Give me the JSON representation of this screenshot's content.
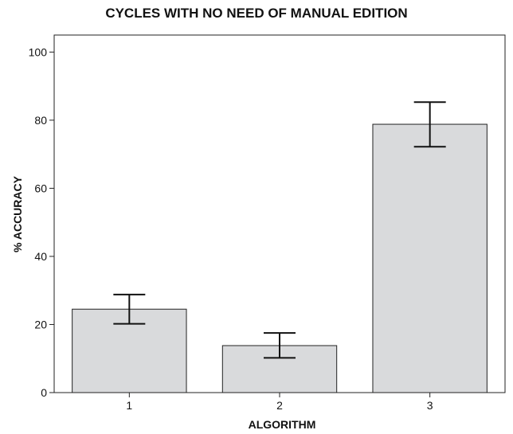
{
  "chart_data": {
    "type": "bar",
    "title": "CYCLES WITH NO NEED OF MANUAL EDITION",
    "xlabel": "ALGORITHM",
    "ylabel": "% ACCURACY",
    "categories": [
      "1",
      "2",
      "3"
    ],
    "values": [
      24.5,
      13.8,
      78.8
    ],
    "error_bars": [
      {
        "low": 20.2,
        "high": 28.8
      },
      {
        "low": 10.2,
        "high": 17.5
      },
      {
        "low": 72.2,
        "high": 85.3
      }
    ],
    "ylim": [
      0,
      105
    ],
    "yticks": [
      "0",
      "20",
      "40",
      "60",
      "80",
      "100"
    ],
    "grid": false,
    "colors": {
      "bar_fill": "#d9dadc",
      "bar_stroke": "#222222",
      "axis": "#222222",
      "error_bar": "#111111"
    }
  }
}
